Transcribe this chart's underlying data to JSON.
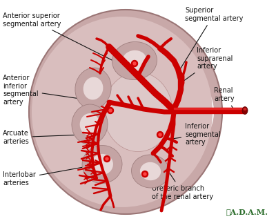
{
  "bg_color": "#ffffff",
  "kidney_outer_color": "#c8a8a8",
  "kidney_outer_edge": "#9a7575",
  "kidney_cortex_color": "#d9bebe",
  "kidney_medulla_color": "#e8d4d4",
  "lobe_color": "#c4a4a4",
  "lobe_edge": "#a08080",
  "sinus_color": "#ddc8c8",
  "artery_color": "#cc0000",
  "artery_light": "#ff2222",
  "line_color": "#111111",
  "text_color": "#111111",
  "adam_color": "#2d6e2d",
  "adam_text": "✿A.D.A.M.",
  "labels": {
    "ant_sup": "Anterior superior\nsegmental artery",
    "ant_inf": "Anterior\ninferior\nsegmental\nartery",
    "arcuate": "Arcuate\narteries",
    "interlobar": "Interlobar\narteries",
    "sup_seg": "Superior\nsegmental artery",
    "inf_sup": "Inferior\nsuprarenal\nartery",
    "renal": "Renal\nartery",
    "inf_seg": "Inferior\nsegmental\nartery",
    "ureteric": "Ureteric branch\nof the renal artery"
  }
}
